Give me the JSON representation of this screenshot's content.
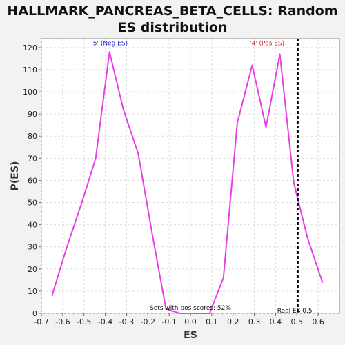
{
  "chart_data": {
    "type": "line",
    "title_lines": [
      "HALLMARK_PANCREAS_BETA_CELLS: Random",
      "ES distribution"
    ],
    "xlabel": "ES",
    "ylabel": "P(ES)",
    "xlim": [
      -0.7,
      0.7
    ],
    "ylim": [
      0,
      124
    ],
    "xticks": [
      "-0.7",
      "-0.6",
      "-0.5",
      "-0.4",
      "-0.3",
      "-0.2",
      "-0.1",
      "0.0",
      "0.1",
      "0.2",
      "0.3",
      "0.4",
      "0.5",
      "0.6"
    ],
    "yticks": [
      "0",
      "10",
      "20",
      "30",
      "40",
      "50",
      "60",
      "70",
      "80",
      "90",
      "100",
      "110",
      "120"
    ],
    "grid": true,
    "series": [
      {
        "color": "#e83ee8",
        "points": [
          [
            -0.65,
            8
          ],
          [
            -0.58,
            30
          ],
          [
            -0.51,
            50
          ],
          [
            -0.445,
            70
          ],
          [
            -0.38,
            118
          ],
          [
            -0.315,
            92
          ],
          [
            -0.245,
            72
          ],
          [
            -0.18,
            36
          ],
          [
            -0.115,
            2
          ],
          [
            -0.05,
            0
          ],
          [
            0.02,
            0
          ],
          [
            0.09,
            0
          ],
          [
            0.155,
            16
          ],
          [
            0.22,
            86
          ],
          [
            0.29,
            112
          ],
          [
            0.355,
            84
          ],
          [
            0.42,
            117
          ],
          [
            0.485,
            59
          ],
          [
            0.55,
            34
          ],
          [
            0.62,
            14
          ]
        ]
      }
    ],
    "annotations": [
      {
        "text": "'5' (Neg ES)",
        "x": -0.38,
        "y": 121,
        "color": "#2222cc"
      },
      {
        "text": "'4' (Pos ES)",
        "x": 0.36,
        "y": 121,
        "color": "#dd2222"
      },
      {
        "text": "Sets with pos scores: 52%",
        "x": 0.0,
        "y": 1.5,
        "color": "#111111"
      },
      {
        "text": "Real ES 0.5",
        "x": 0.49,
        "y": 0.3,
        "color": "#111111"
      }
    ],
    "real_es": 0.505
  }
}
